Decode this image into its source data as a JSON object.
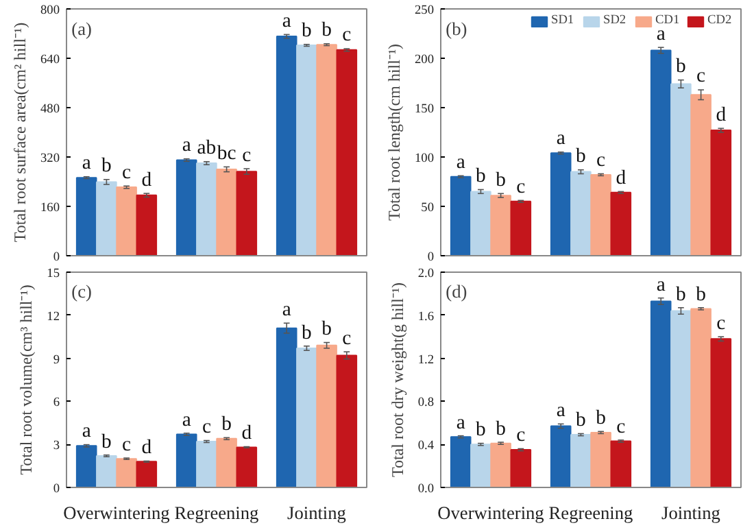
{
  "chart_data": [
    {
      "type": "bar",
      "ylabel": "Total root surface area(cm² hill⁻¹)",
      "annotations": [
        "(a)"
      ],
      "categories": [
        null,
        null,
        null
      ],
      "tick_labels": "y",
      "ylim": [
        0,
        800
      ],
      "yticks": [
        0,
        160,
        320,
        480,
        640,
        800
      ],
      "grid": false,
      "legend": false,
      "series": [
        {
          "color": "#1f66b0",
          "values": [
            253,
            310,
            711
          ],
          "errors": [
            3,
            4,
            6
          ],
          "value_labels": [
            "a",
            "a",
            "a"
          ]
        },
        {
          "color": "#b8d5ea",
          "values": [
            239,
            300,
            682
          ],
          "errors": [
            8,
            5,
            3
          ],
          "value_labels": [
            "b",
            "ab",
            "b"
          ]
        },
        {
          "color": "#f7a98a",
          "values": [
            222,
            280,
            684
          ],
          "errors": [
            4,
            8,
            3
          ],
          "value_labels": [
            "c",
            "bc",
            "b"
          ]
        },
        {
          "color": "#c4161c",
          "values": [
            196,
            273,
            667
          ],
          "errors": [
            6,
            9,
            4
          ],
          "value_labels": [
            "d",
            "c",
            "c"
          ]
        }
      ]
    },
    {
      "type": "bar",
      "ylabel": "Total root length(cm hill⁻¹)",
      "annotations": [
        "(b)"
      ],
      "categories": [
        null,
        null,
        null
      ],
      "tick_labels": "y",
      "ylim": [
        0,
        250
      ],
      "yticks": [
        0,
        50,
        100,
        150,
        200,
        250
      ],
      "grid": false,
      "legend": "top right",
      "series": [
        {
          "name": "SD1",
          "color": "#1f66b0",
          "values": [
            80,
            104,
            208
          ],
          "errors": [
            1,
            1,
            3
          ],
          "value_labels": [
            "a",
            "a",
            "a"
          ]
        },
        {
          "name": "SD2",
          "color": "#b8d5ea",
          "values": [
            65,
            85,
            174
          ],
          "errors": [
            2,
            2,
            4
          ],
          "value_labels": [
            "b",
            "b",
            "b"
          ]
        },
        {
          "name": "CD1",
          "color": "#f7a98a",
          "values": [
            61,
            82,
            163
          ],
          "errors": [
            2,
            1,
            5
          ],
          "value_labels": [
            "b",
            "c",
            "c"
          ]
        },
        {
          "name": "CD2",
          "color": "#c4161c",
          "values": [
            55,
            64,
            127
          ],
          "errors": [
            1,
            1,
            2
          ],
          "value_labels": [
            "c",
            "d",
            "d"
          ]
        }
      ]
    },
    {
      "type": "bar",
      "ylabel": "Total root volume(cm³ hill⁻¹)",
      "annotations": [
        "(c)"
      ],
      "categories": [
        "Overwintering",
        "Regreening",
        "Jointing"
      ],
      "ylim": [
        0,
        15
      ],
      "yticks": [
        0,
        3,
        6,
        9,
        12,
        15
      ],
      "grid": false,
      "legend": false,
      "series": [
        {
          "color": "#1f66b0",
          "values": [
            2.9,
            3.7,
            11.1
          ],
          "errors": [
            0.08,
            0.08,
            0.35
          ],
          "value_labels": [
            "a",
            "a",
            "a"
          ]
        },
        {
          "color": "#b8d5ea",
          "values": [
            2.2,
            3.2,
            9.7
          ],
          "errors": [
            0.06,
            0.07,
            0.15
          ],
          "value_labels": [
            "b",
            "c",
            "b"
          ]
        },
        {
          "color": "#f7a98a",
          "values": [
            2.0,
            3.4,
            9.9
          ],
          "errors": [
            0.05,
            0.07,
            0.2
          ],
          "value_labels": [
            "c",
            "b",
            "b"
          ]
        },
        {
          "color": "#c4161c",
          "values": [
            1.8,
            2.8,
            9.2
          ],
          "errors": [
            0.04,
            0.04,
            0.25
          ],
          "value_labels": [
            "d",
            "d",
            "c"
          ]
        }
      ]
    },
    {
      "type": "bar",
      "ylabel": "Total root dry weight(g hill⁻¹)",
      "annotations": [
        "(d)"
      ],
      "categories": [
        "Overwintering",
        "Regreening",
        "Jointing"
      ],
      "ylim": [
        0,
        2.0
      ],
      "yticks": [
        {
          "value": 0,
          "label": "0.0"
        },
        {
          "value": 0.4,
          "label": "0.4"
        },
        {
          "value": 0.8,
          "label": "0.8"
        },
        {
          "value": 1.2,
          "label": "1.2"
        },
        {
          "value": 1.6,
          "label": "1.6"
        },
        {
          "value": 2.0,
          "label": "2.0"
        }
      ],
      "grid": false,
      "legend": false,
      "series": [
        {
          "color": "#1f66b0",
          "values": [
            0.47,
            0.57,
            1.73
          ],
          "errors": [
            0.01,
            0.02,
            0.03
          ],
          "value_labels": [
            "a",
            "a",
            "a"
          ]
        },
        {
          "color": "#b8d5ea",
          "values": [
            0.4,
            0.49,
            1.64
          ],
          "errors": [
            0.01,
            0.01,
            0.03
          ],
          "value_labels": [
            "b",
            "b",
            "b"
          ]
        },
        {
          "color": "#f7a98a",
          "values": [
            0.41,
            0.51,
            1.66
          ],
          "errors": [
            0.01,
            0.01,
            0.01
          ],
          "value_labels": [
            "b",
            "b",
            "b"
          ]
        },
        {
          "color": "#c4161c",
          "values": [
            0.35,
            0.43,
            1.38
          ],
          "errors": [
            0.01,
            0.01,
            0.02
          ],
          "value_labels": [
            "c",
            "c",
            "c"
          ]
        }
      ]
    }
  ]
}
